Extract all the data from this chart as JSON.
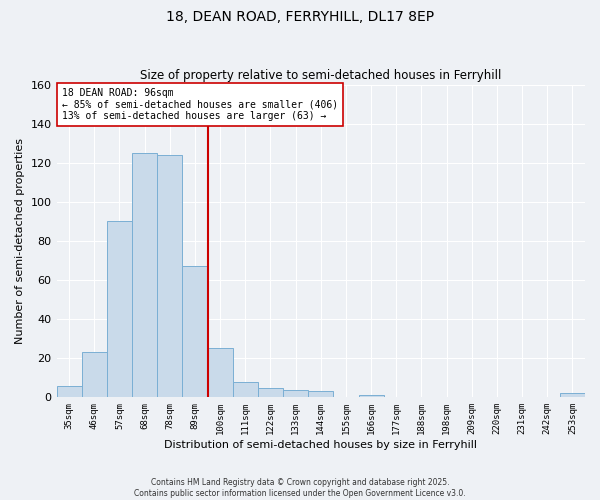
{
  "title": "18, DEAN ROAD, FERRYHILL, DL17 8EP",
  "subtitle": "Size of property relative to semi-detached houses in Ferryhill",
  "xlabel": "Distribution of semi-detached houses by size in Ferryhill",
  "ylabel": "Number of semi-detached properties",
  "bar_labels": [
    "35sqm",
    "46sqm",
    "57sqm",
    "68sqm",
    "78sqm",
    "89sqm",
    "100sqm",
    "111sqm",
    "122sqm",
    "133sqm",
    "144sqm",
    "155sqm",
    "166sqm",
    "177sqm",
    "188sqm",
    "198sqm",
    "209sqm",
    "220sqm",
    "231sqm",
    "242sqm",
    "253sqm"
  ],
  "bar_heights": [
    6,
    23,
    90,
    125,
    124,
    67,
    25,
    8,
    5,
    4,
    3,
    0,
    1,
    0,
    0,
    0,
    0,
    0,
    0,
    0,
    2
  ],
  "bar_color": "#c9daea",
  "bar_edge_color": "#7aafd4",
  "vline_color": "#cc0000",
  "annotation_title": "18 DEAN ROAD: 96sqm",
  "annotation_line1": "← 85% of semi-detached houses are smaller (406)",
  "annotation_line2": "13% of semi-detached houses are larger (63) →",
  "annotation_box_facecolor": "#ffffff",
  "annotation_box_edgecolor": "#cc0000",
  "ylim": [
    0,
    160
  ],
  "yticks": [
    0,
    20,
    40,
    60,
    80,
    100,
    120,
    140,
    160
  ],
  "bg_color": "#eef1f5",
  "grid_color": "#ffffff",
  "footer1": "Contains HM Land Registry data © Crown copyright and database right 2025.",
  "footer2": "Contains public sector information licensed under the Open Government Licence v3.0."
}
